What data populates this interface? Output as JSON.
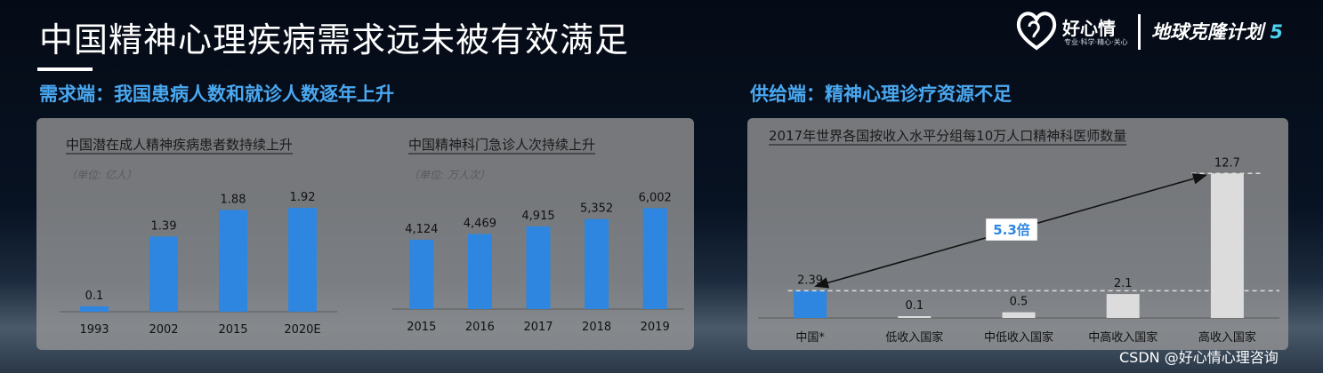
{
  "header": {
    "title": "中国精神心理疾病需求远未被有效满足",
    "logo_name": "好心情",
    "logo_slogan": "专业·科学·精心·关心",
    "project_name": "地球克隆计划",
    "project_number": "5"
  },
  "left_section": {
    "heading": "需求端：我国患病人数和就诊人数逐年上升"
  },
  "right_section": {
    "heading": "供给端：精神心理诊疗资源不足"
  },
  "watermark": "CSDN @好心情心理咨询",
  "colors": {
    "blue_bar": "#2e86e0",
    "gray_bar": "#dcdcdc",
    "panel": "#969696"
  },
  "chart_data": [
    {
      "type": "bar",
      "title": "中国潜在成人精神疾病患者数持续上升",
      "unit": "（单位: 亿人）",
      "categories": [
        "1993",
        "2002",
        "2015",
        "2020E"
      ],
      "values": [
        0.1,
        1.39,
        1.88,
        1.92
      ],
      "value_labels": [
        "0.1",
        "1.39",
        "1.88",
        "1.92"
      ],
      "ylim": [
        0,
        2.1
      ]
    },
    {
      "type": "bar",
      "title": "中国精神科门急诊人次持续上升",
      "unit": "（单位: 万人次）",
      "categories": [
        "2015",
        "2016",
        "2017",
        "2018",
        "2019"
      ],
      "values": [
        4124,
        4469,
        4915,
        5352,
        6002
      ],
      "value_labels": [
        "4,124",
        "4,469",
        "4,915",
        "5,352",
        "6,002"
      ],
      "ylim": [
        0,
        6600
      ]
    },
    {
      "type": "bar",
      "title": "2017年世界各国按收入水平分组每10万人口精神科医师数量",
      "categories": [
        "中国*",
        "低收入国家",
        "中低收入国家",
        "中高收入国家",
        "高收入国家"
      ],
      "values": [
        2.39,
        0.1,
        0.5,
        2.1,
        12.7
      ],
      "value_labels": [
        "2.39",
        "0.1",
        "0.5",
        "2.1",
        "12.7"
      ],
      "highlight_index": 0,
      "annotation": "5.3倍",
      "ylim": [
        0,
        13.5
      ]
    }
  ]
}
